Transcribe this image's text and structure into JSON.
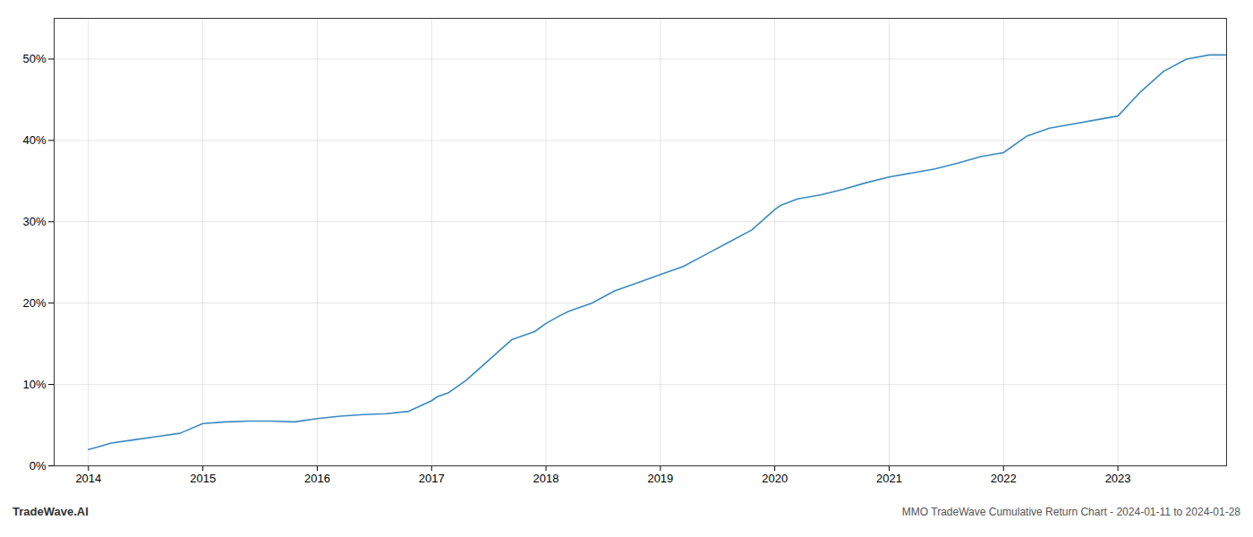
{
  "chart_data": {
    "type": "line",
    "title": "MMO TradeWave Cumulative Return Chart - 2024-01-11 to 2024-01-28",
    "annotations": [
      "TradeWave.AI"
    ],
    "x": [
      2014.0,
      2014.08,
      2014.2,
      2014.4,
      2014.6,
      2014.8,
      2015.0,
      2015.2,
      2015.4,
      2015.6,
      2015.8,
      2016.0,
      2016.2,
      2016.4,
      2016.6,
      2016.8,
      2017.0,
      2017.05,
      2017.15,
      2017.3,
      2017.5,
      2017.7,
      2017.9,
      2018.0,
      2018.1,
      2018.2,
      2018.4,
      2018.6,
      2018.8,
      2019.0,
      2019.2,
      2019.4,
      2019.6,
      2019.8,
      2020.0,
      2020.05,
      2020.2,
      2020.4,
      2020.6,
      2020.8,
      2021.0,
      2021.2,
      2021.4,
      2021.6,
      2021.8,
      2022.0,
      2022.2,
      2022.4,
      2022.6,
      2022.8,
      2023.0,
      2023.2,
      2023.4,
      2023.6,
      2023.8,
      2023.95
    ],
    "values": [
      2.0,
      2.3,
      2.8,
      3.2,
      3.6,
      4.0,
      5.2,
      5.4,
      5.5,
      5.5,
      5.4,
      5.8,
      6.1,
      6.3,
      6.4,
      6.7,
      8.0,
      8.5,
      9.0,
      10.5,
      13.0,
      15.5,
      16.5,
      17.5,
      18.3,
      19.0,
      20.0,
      21.5,
      22.5,
      23.5,
      24.5,
      26.0,
      27.5,
      29.0,
      31.5,
      32.0,
      32.8,
      33.3,
      34.0,
      34.8,
      35.5,
      36.0,
      36.5,
      37.2,
      38.0,
      38.5,
      40.5,
      41.5,
      42.0,
      42.5,
      43.0,
      46.0,
      48.5,
      50.0,
      50.5,
      50.5
    ],
    "color": "#3a8abf",
    "xlim": [
      2013.7,
      2023.95
    ],
    "xticks": [
      2014,
      2015,
      2016,
      2017,
      2018,
      2019,
      2020,
      2021,
      2022,
      2023
    ],
    "ylim": [
      0,
      55
    ],
    "yticks": [
      {
        "value": 0,
        "label": "0%"
      },
      {
        "value": 10,
        "label": "10%"
      },
      {
        "value": 20,
        "label": "20%"
      },
      {
        "value": 30,
        "label": "30%"
      },
      {
        "value": 40,
        "label": "40%"
      },
      {
        "value": 50,
        "label": "50%"
      }
    ],
    "grid": true
  }
}
